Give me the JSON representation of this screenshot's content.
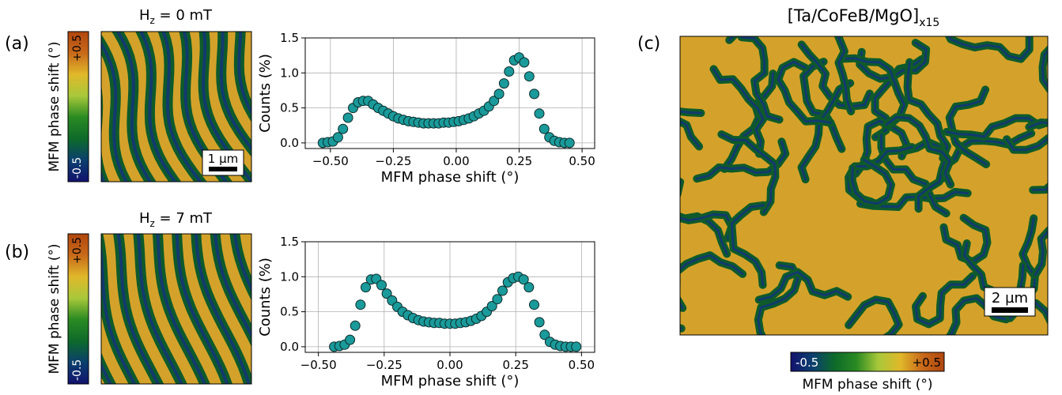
{
  "colors": {
    "marker_fill": "#1a9a9a",
    "marker_edge": "#0d2a2a",
    "grid": "#b0b0b0",
    "colormap": [
      "#12126e",
      "#0b3f6e",
      "#0d6a2a",
      "#2a8a22",
      "#a8c83a",
      "#e0b82a",
      "#c86a1a",
      "#b0460e"
    ]
  },
  "panels": [
    {
      "label": "(a)",
      "title": "H",
      "title_sub": "z",
      "title_rest": " = 0 mT",
      "colorbar_label": "MFM phase shift (°)",
      "colorbar_max": "+0.5",
      "colorbar_min": "-0.5",
      "scalebar": "1 µm"
    },
    {
      "label": "(b)",
      "title": "H",
      "title_sub": "z",
      "title_rest": " = 7 mT",
      "colorbar_label": "MFM phase shift (°)",
      "colorbar_max": "+0.5",
      "colorbar_min": "-0.5"
    },
    {
      "label": "(c)",
      "title": "[Ta/CoFeB/MgO]",
      "title_sub": "x15",
      "scalebar": "2 µm",
      "colorbar_min": "-0.5",
      "colorbar_max": "+0.5",
      "colorbar_label": "MFM phase shift (°)"
    }
  ],
  "chart_data": [
    {
      "type": "scatter",
      "panel": "(a)",
      "xlabel": "MFM phase shift (°)",
      "ylabel": "Counts (%)",
      "xlim": [
        -0.6,
        0.55
      ],
      "ylim": [
        -0.08,
        1.5
      ],
      "xticks": [
        "−0.50",
        "−0.25",
        "0.00",
        "0.25",
        "0.50"
      ],
      "xtick_values": [
        -0.5,
        -0.25,
        0.0,
        0.25,
        0.5
      ],
      "yticks": [
        "0.0",
        "0.5",
        "1.0",
        "1.5"
      ],
      "ytick_values": [
        0.0,
        0.5,
        1.0,
        1.5
      ],
      "grid": true,
      "x": [
        -0.53,
        -0.51,
        -0.49,
        -0.47,
        -0.45,
        -0.43,
        -0.41,
        -0.39,
        -0.37,
        -0.35,
        -0.33,
        -0.31,
        -0.29,
        -0.27,
        -0.25,
        -0.23,
        -0.21,
        -0.19,
        -0.17,
        -0.15,
        -0.13,
        -0.11,
        -0.09,
        -0.07,
        -0.05,
        -0.03,
        -0.01,
        0.01,
        0.03,
        0.05,
        0.07,
        0.09,
        0.11,
        0.13,
        0.15,
        0.17,
        0.19,
        0.21,
        0.23,
        0.25,
        0.27,
        0.29,
        0.31,
        0.33,
        0.35,
        0.37,
        0.39,
        0.41,
        0.43,
        0.45
      ],
      "y": [
        0.0,
        0.01,
        0.02,
        0.08,
        0.2,
        0.36,
        0.5,
        0.58,
        0.6,
        0.6,
        0.55,
        0.5,
        0.46,
        0.42,
        0.38,
        0.35,
        0.33,
        0.31,
        0.3,
        0.29,
        0.28,
        0.28,
        0.28,
        0.28,
        0.29,
        0.29,
        0.3,
        0.31,
        0.33,
        0.35,
        0.38,
        0.42,
        0.46,
        0.52,
        0.6,
        0.7,
        0.85,
        1.02,
        1.18,
        1.22,
        1.15,
        0.95,
        0.7,
        0.42,
        0.2,
        0.08,
        0.03,
        0.01,
        0.0,
        0.0
      ]
    },
    {
      "type": "scatter",
      "panel": "(b)",
      "xlabel": "MFM phase shift (°)",
      "ylabel": "Counts (%)",
      "xlim": [
        -0.55,
        0.55
      ],
      "ylim": [
        -0.08,
        1.5
      ],
      "xticks": [
        "−0.50",
        "−0.25",
        "0.00",
        "0.25",
        "0.50"
      ],
      "xtick_values": [
        -0.5,
        -0.25,
        0.0,
        0.25,
        0.5
      ],
      "yticks": [
        "0.0",
        "0.5",
        "1.0",
        "1.5"
      ],
      "ytick_values": [
        0.0,
        0.5,
        1.0,
        1.5
      ],
      "grid": true,
      "x": [
        -0.44,
        -0.42,
        -0.4,
        -0.38,
        -0.36,
        -0.34,
        -0.32,
        -0.3,
        -0.28,
        -0.26,
        -0.24,
        -0.22,
        -0.2,
        -0.18,
        -0.16,
        -0.14,
        -0.12,
        -0.1,
        -0.08,
        -0.06,
        -0.04,
        -0.02,
        0.0,
        0.02,
        0.04,
        0.06,
        0.08,
        0.1,
        0.12,
        0.14,
        0.16,
        0.18,
        0.2,
        0.22,
        0.24,
        0.26,
        0.28,
        0.3,
        0.32,
        0.34,
        0.36,
        0.38,
        0.4,
        0.42,
        0.44,
        0.46,
        0.48
      ],
      "y": [
        0.0,
        0.01,
        0.03,
        0.1,
        0.3,
        0.6,
        0.85,
        0.96,
        0.97,
        0.88,
        0.76,
        0.66,
        0.57,
        0.5,
        0.45,
        0.41,
        0.38,
        0.36,
        0.35,
        0.34,
        0.34,
        0.33,
        0.33,
        0.33,
        0.34,
        0.35,
        0.37,
        0.4,
        0.44,
        0.5,
        0.58,
        0.68,
        0.8,
        0.92,
        0.98,
        1.0,
        0.96,
        0.85,
        0.6,
        0.35,
        0.17,
        0.07,
        0.03,
        0.01,
        0.0,
        0.0,
        0.0
      ]
    }
  ]
}
